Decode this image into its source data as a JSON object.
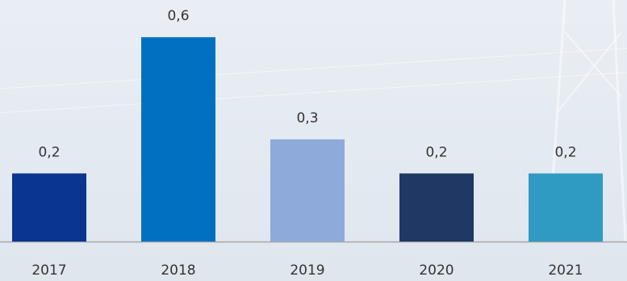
{
  "chart_data": {
    "type": "bar",
    "categories": [
      "2017",
      "2018",
      "2019",
      "2020",
      "2021"
    ],
    "values": [
      0.2,
      0.6,
      0.3,
      0.2,
      0.2
    ],
    "value_labels": [
      "0,2",
      "0,6",
      "0,3",
      "0,2",
      "0,2"
    ],
    "colors": [
      "#0a3591",
      "#0170c1",
      "#8eaadb",
      "#1f3864",
      "#2f9bc3"
    ]
  }
}
